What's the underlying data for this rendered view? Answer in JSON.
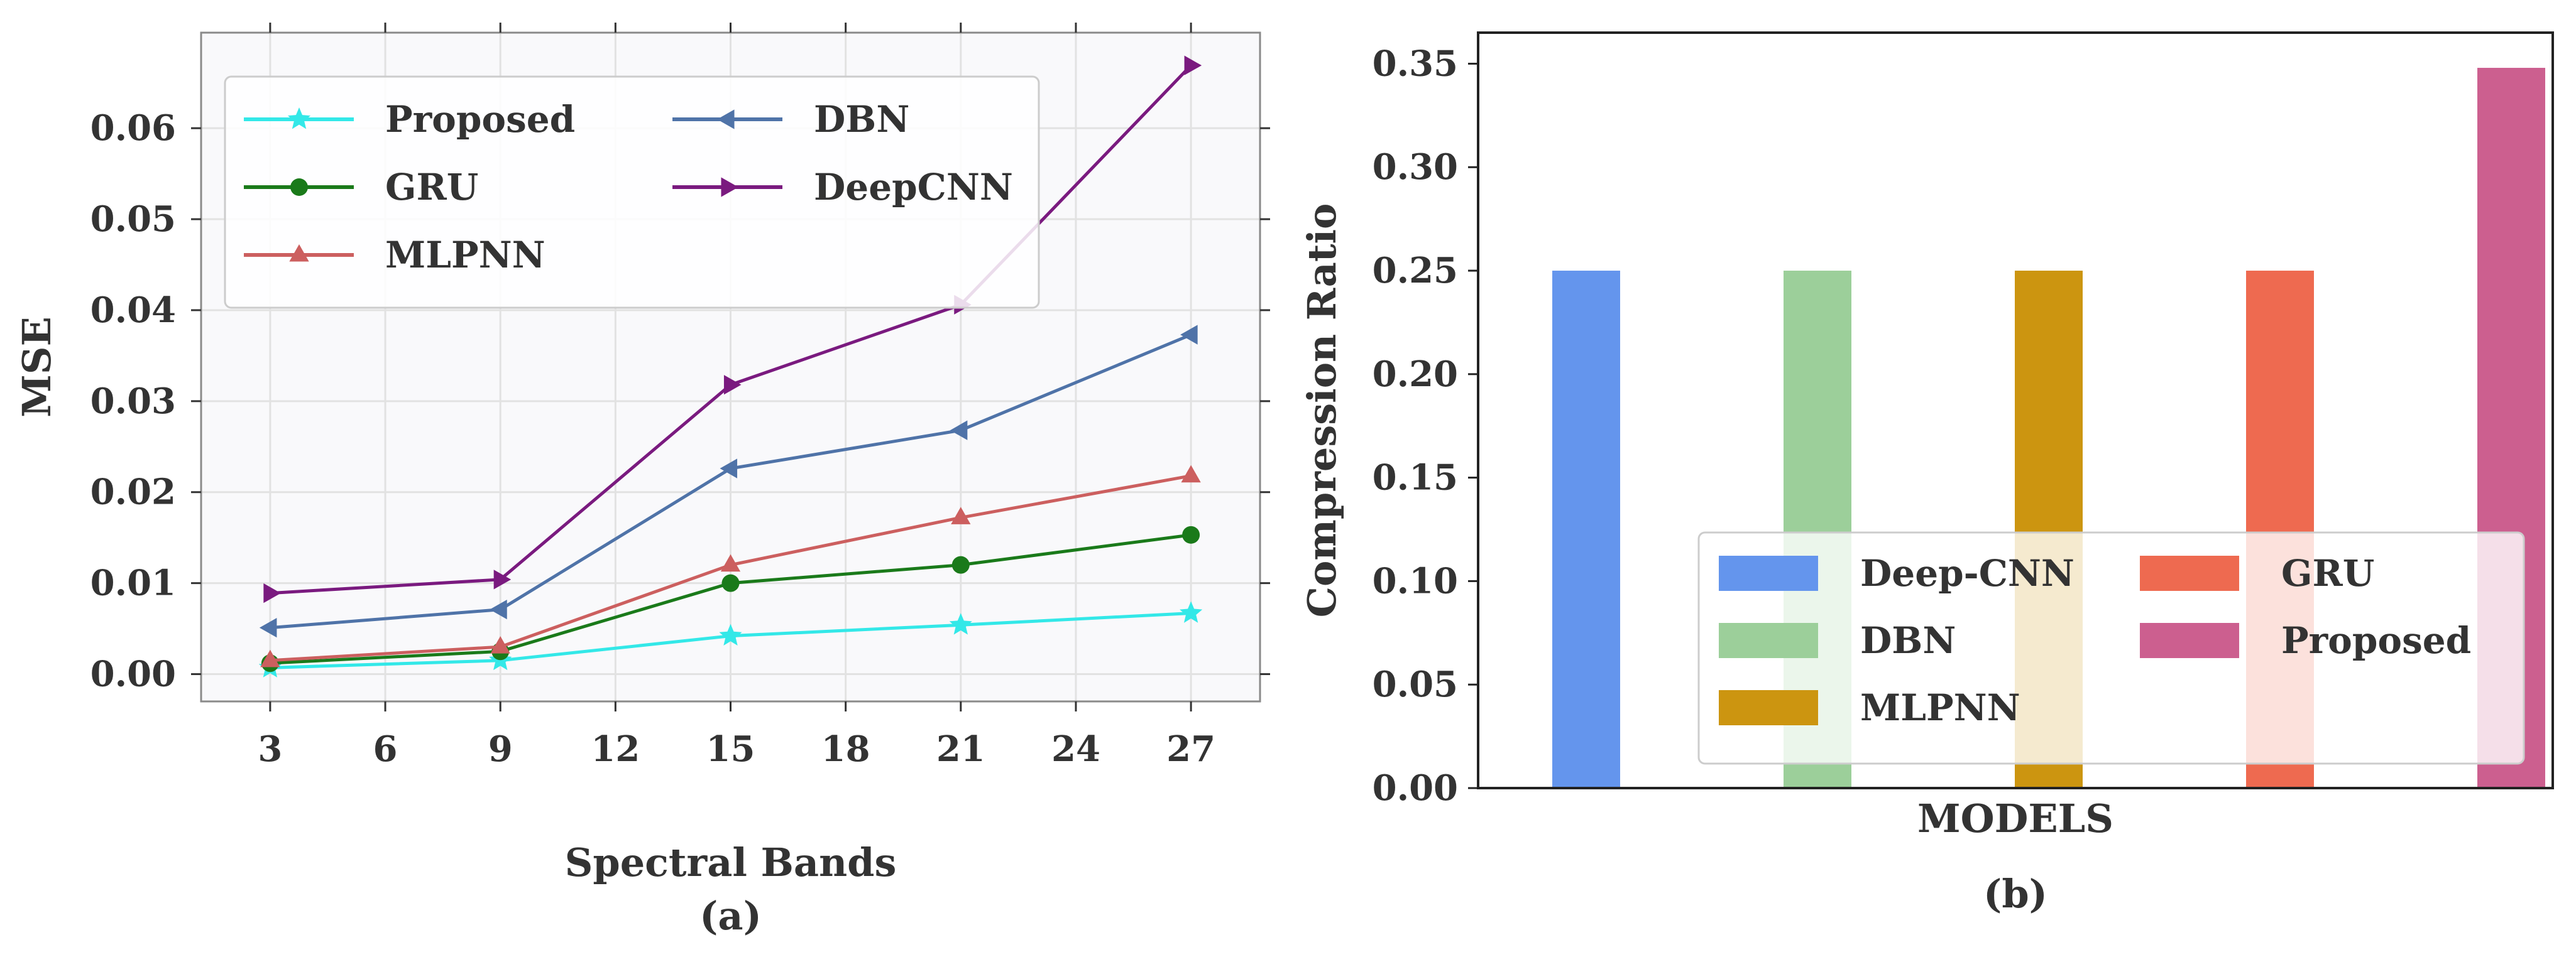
{
  "chart_data": [
    {
      "type": "line",
      "caption": "(a)",
      "xlabel": "Spectral Bands",
      "ylabel": "MSE",
      "xlim": [
        1.2,
        28.8
      ],
      "ylim": [
        -0.003,
        0.0705
      ],
      "xticks": [
        3,
        6,
        9,
        12,
        15,
        18,
        21,
        24,
        27
      ],
      "yticks": [
        0.0,
        0.01,
        0.02,
        0.03,
        0.04,
        0.05,
        0.06
      ],
      "ytick_labels": [
        "0.00",
        "0.01",
        "0.02",
        "0.03",
        "0.04",
        "0.05",
        "0.06"
      ],
      "grid": true,
      "legend": "top-left, two columns",
      "x": [
        3,
        9,
        15,
        21,
        27
      ],
      "series": [
        {
          "name": "Proposed",
          "marker": "star",
          "color": "#33e8e8",
          "values": [
            0.0007,
            0.0015,
            0.0042,
            0.0054,
            0.0067
          ]
        },
        {
          "name": "GRU",
          "marker": "circle",
          "color": "#1a7a1a",
          "values": [
            0.0012,
            0.0025,
            0.01,
            0.012,
            0.0153
          ]
        },
        {
          "name": "MLPNN",
          "marker": "triangle-up",
          "color": "#cc5f5f",
          "values": [
            0.0015,
            0.003,
            0.012,
            0.0172,
            0.0218
          ]
        },
        {
          "name": "DBN",
          "marker": "triangle-left",
          "color": "#4f73a8",
          "values": [
            0.0051,
            0.0071,
            0.0226,
            0.0268,
            0.0373
          ]
        },
        {
          "name": "DeepCNN",
          "marker": "triangle-right",
          "color": "#7a1a7f",
          "values": [
            0.0089,
            0.0104,
            0.0318,
            0.0406,
            0.0669
          ]
        }
      ]
    },
    {
      "type": "bar",
      "caption": "(b)",
      "xlabel": "MODELS",
      "ylabel": "Compression Ratio",
      "ylim": [
        0,
        0.365
      ],
      "yticks": [
        0.0,
        0.05,
        0.1,
        0.15,
        0.2,
        0.25,
        0.3,
        0.35
      ],
      "ytick_labels": [
        "0.00",
        "0.05",
        "0.10",
        "0.15",
        "0.20",
        "0.25",
        "0.30",
        "0.35"
      ],
      "grid": false,
      "legend": "bottom-right, two columns",
      "categories": [
        "Deep-CNN",
        "DBN",
        "MLPNN",
        "GRU",
        "Proposed"
      ],
      "values": [
        0.25,
        0.25,
        0.25,
        0.25,
        0.348
      ],
      "colors": [
        "#6495ed",
        "#9ccf9a",
        "#cc9510",
        "#ee6a50",
        "#cc5f8f"
      ]
    }
  ]
}
